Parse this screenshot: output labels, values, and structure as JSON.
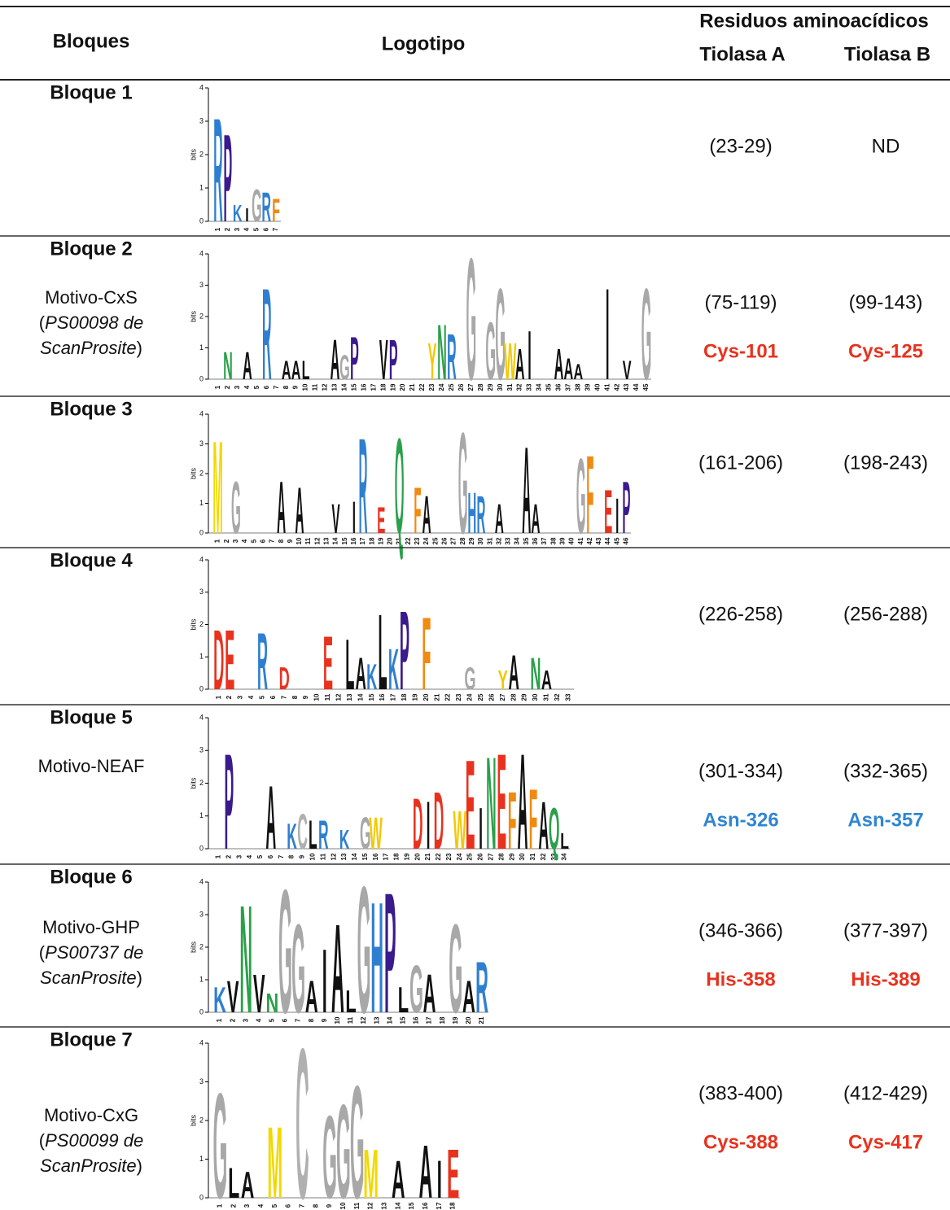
{
  "header": {
    "col_blocks": "Bloques",
    "col_logo": "Logotipo",
    "col_residues": "Residuos aminoacídicos",
    "col_a": "Tiolasa A",
    "col_b": "Tiolasa B"
  },
  "rows": [
    {
      "block": "Bloque 1",
      "logo": {
        "axis_label": "bits",
        "yticks": [
          0,
          1,
          2,
          3,
          4
        ],
        "positions": [
          1,
          2,
          3,
          4,
          5,
          6,
          7
        ],
        "letters": [
          [
            1,
            "R",
            3.2
          ],
          [
            2,
            "P",
            2.7
          ],
          [
            3,
            "K",
            0.5
          ],
          [
            4,
            "I",
            0.4
          ],
          [
            5,
            "G",
            1.0
          ],
          [
            6,
            "R",
            0.9
          ],
          [
            7,
            "F",
            0.7
          ]
        ]
      },
      "a": {
        "range": "(23-29)"
      },
      "b": {
        "range": "ND"
      }
    },
    {
      "block": "Bloque 2",
      "motif": {
        "name": "Motivo-CxS",
        "ref": [
          "(",
          "PS00098 de",
          "ScanProsite",
          ")"
        ]
      },
      "logo": {
        "axis_label": "bits",
        "yticks": [
          0,
          1,
          2,
          3,
          4
        ],
        "positions": [
          1,
          2,
          3,
          4,
          5,
          6,
          7,
          8,
          9,
          10,
          11,
          12,
          13,
          14,
          15,
          16,
          17,
          18,
          19,
          20,
          21,
          22,
          23,
          24,
          25,
          26,
          27,
          28,
          29,
          30,
          31,
          32,
          33,
          34,
          35,
          36,
          37,
          38,
          39,
          40,
          41,
          42,
          43,
          44,
          45
        ],
        "letters": [
          [
            2,
            "N",
            0.9
          ],
          [
            4,
            "A",
            0.9
          ],
          [
            6,
            "R",
            3.0
          ],
          [
            8,
            "A",
            0.6
          ],
          [
            9,
            "A",
            0.6
          ],
          [
            10,
            "L",
            0.6
          ],
          [
            13,
            "A",
            1.3
          ],
          [
            14,
            "G",
            0.8
          ],
          [
            15,
            "P",
            1.4
          ],
          [
            18,
            "V",
            1.3
          ],
          [
            19,
            "P",
            1.3
          ],
          [
            23,
            "Y",
            1.2
          ],
          [
            24,
            "N",
            1.8
          ],
          [
            25,
            "R",
            1.5
          ],
          [
            27,
            "G",
            4.0
          ],
          [
            29,
            "G",
            1.9
          ],
          [
            30,
            "G",
            3.0
          ],
          [
            31,
            "W",
            1.2
          ],
          [
            32,
            "A",
            1.0
          ],
          [
            33,
            "I",
            1.6
          ],
          [
            36,
            "A",
            1.0
          ],
          [
            37,
            "A",
            0.7
          ],
          [
            38,
            "A",
            0.5
          ],
          [
            41,
            "I",
            3.0
          ],
          [
            43,
            "V",
            0.6
          ],
          [
            45,
            "G",
            3.0
          ]
        ]
      },
      "a": {
        "range": "(75-119)",
        "residue": "Cys-101",
        "color": "#e8321e"
      },
      "b": {
        "range": "(99-143)",
        "residue": "Cys-125",
        "color": "#e8321e"
      }
    },
    {
      "block": "Bloque 3",
      "logo": {
        "axis_label": "bits",
        "yticks": [
          0,
          1,
          2,
          3,
          4
        ],
        "positions": [
          1,
          2,
          3,
          4,
          5,
          6,
          7,
          8,
          9,
          10,
          11,
          12,
          13,
          14,
          15,
          16,
          17,
          18,
          19,
          20,
          21,
          22,
          23,
          24,
          25,
          26,
          27,
          28,
          29,
          30,
          31,
          32,
          33,
          34,
          35,
          36,
          37,
          38,
          39,
          40,
          41,
          42,
          43,
          44,
          45,
          46
        ],
        "letters": [
          [
            1,
            "M",
            3.2
          ],
          [
            3,
            "G",
            1.8
          ],
          [
            8,
            "A",
            1.8
          ],
          [
            10,
            "A",
            1.6
          ],
          [
            14,
            "V",
            1.0
          ],
          [
            16,
            "I",
            1.1
          ],
          [
            17,
            "R",
            3.3
          ],
          [
            19,
            "E",
            0.9
          ],
          [
            21,
            "Q",
            3.3
          ],
          [
            23,
            "F",
            1.6
          ],
          [
            24,
            "A",
            1.3
          ],
          [
            28,
            "G",
            3.5
          ],
          [
            29,
            "H",
            1.4
          ],
          [
            30,
            "R",
            1.3
          ],
          [
            32,
            "A",
            1.0
          ],
          [
            35,
            "A",
            3.0
          ],
          [
            36,
            "A",
            1.0
          ],
          [
            41,
            "G",
            2.6
          ],
          [
            42,
            "F",
            2.7
          ],
          [
            44,
            "E",
            1.5
          ],
          [
            45,
            "I",
            1.2
          ],
          [
            46,
            "P",
            1.8
          ]
        ]
      },
      "a": {
        "range": "(161-206)"
      },
      "b": {
        "range": "(198-243)"
      }
    },
    {
      "block": "Bloque 4",
      "logo": {
        "axis_label": "bits",
        "yticks": [
          0,
          1,
          2,
          3,
          4
        ],
        "positions": [
          1,
          2,
          3,
          4,
          5,
          6,
          7,
          8,
          9,
          10,
          11,
          12,
          13,
          14,
          15,
          16,
          17,
          18,
          19,
          20,
          21,
          22,
          23,
          24,
          25,
          26,
          27,
          28,
          29,
          30,
          31,
          32,
          33
        ],
        "letters": [
          [
            1,
            "D",
            1.9
          ],
          [
            2,
            "E",
            1.9
          ],
          [
            5,
            "R",
            1.8
          ],
          [
            7,
            "D",
            0.7
          ],
          [
            11,
            "E",
            1.7
          ],
          [
            13,
            "L",
            1.6
          ],
          [
            14,
            "A",
            1.0
          ],
          [
            15,
            "K",
            0.8
          ],
          [
            16,
            "L",
            2.4
          ],
          [
            17,
            "K",
            1.3
          ],
          [
            18,
            "P",
            2.5
          ],
          [
            20,
            "F",
            2.3
          ],
          [
            24,
            "G",
            0.7
          ],
          [
            27,
            "Y",
            0.6
          ],
          [
            28,
            "A",
            1.1
          ],
          [
            30,
            "N",
            1.0
          ],
          [
            31,
            "A",
            0.6
          ]
        ]
      },
      "a": {
        "range": "(226-258)"
      },
      "b": {
        "range": "(256-288)"
      }
    },
    {
      "block": "Bloque 5",
      "motif": {
        "name": "Motivo-NEAF"
      },
      "logo": {
        "axis_label": "bits",
        "yticks": [
          0,
          1,
          2,
          3,
          4
        ],
        "positions": [
          1,
          2,
          3,
          4,
          5,
          6,
          7,
          8,
          9,
          10,
          11,
          12,
          13,
          14,
          15,
          16,
          17,
          18,
          19,
          20,
          21,
          22,
          23,
          24,
          25,
          26,
          27,
          28,
          29,
          30,
          31,
          32,
          33,
          34
        ],
        "letters": [
          [
            2,
            "P",
            3.0
          ],
          [
            6,
            "A",
            2.0
          ],
          [
            8,
            "K",
            0.8
          ],
          [
            9,
            "C",
            1.1
          ],
          [
            10,
            "L",
            0.9
          ],
          [
            11,
            "R",
            0.9
          ],
          [
            13,
            "K",
            0.6
          ],
          [
            15,
            "G",
            1.0
          ],
          [
            16,
            "W",
            1.0
          ],
          [
            20,
            "D",
            1.6
          ],
          [
            21,
            "I",
            1.5
          ],
          [
            22,
            "D",
            1.8
          ],
          [
            24,
            "W",
            1.2
          ],
          [
            25,
            "E",
            2.8
          ],
          [
            26,
            "I",
            1.3
          ],
          [
            27,
            "N",
            2.9
          ],
          [
            28,
            "E",
            3.0
          ],
          [
            29,
            "F",
            1.8
          ],
          [
            30,
            "A",
            3.0
          ],
          [
            31,
            "F",
            1.9
          ],
          [
            32,
            "A",
            1.5
          ],
          [
            33,
            "Q",
            1.3
          ],
          [
            34,
            "L",
            0.5
          ]
        ]
      },
      "a": {
        "range": "(301-334)",
        "residue": "Asn-326",
        "color": "#2f86d0"
      },
      "b": {
        "range": "(332-365)",
        "residue": "Asn-357",
        "color": "#2f86d0"
      }
    },
    {
      "block": "Bloque 6",
      "motif": {
        "name": "Motivo-GHP",
        "ref": [
          "(",
          "PS00737 de",
          "ScanProsite",
          ")"
        ]
      },
      "logo": {
        "axis_label": "bits",
        "yticks": [
          0,
          1,
          2,
          3,
          4
        ],
        "positions": [
          1,
          2,
          3,
          4,
          5,
          6,
          7,
          8,
          9,
          10,
          11,
          12,
          13,
          14,
          15,
          16,
          17,
          18,
          19,
          20,
          21
        ],
        "letters": [
          [
            1,
            "K",
            0.8
          ],
          [
            2,
            "V",
            1.0
          ],
          [
            3,
            "N",
            3.4
          ],
          [
            4,
            "V",
            1.2
          ],
          [
            5,
            "N",
            0.6
          ],
          [
            6,
            "G",
            3.9
          ],
          [
            7,
            "G",
            2.8
          ],
          [
            8,
            "A",
            1.0
          ],
          [
            9,
            "I",
            2.0
          ],
          [
            10,
            "A",
            2.8
          ],
          [
            11,
            "L",
            0.7
          ],
          [
            12,
            "G",
            4.0
          ],
          [
            13,
            "H",
            3.5
          ],
          [
            14,
            "P",
            3.8
          ],
          [
            15,
            "L",
            0.8
          ],
          [
            16,
            "G",
            1.5
          ],
          [
            17,
            "A",
            1.2
          ],
          [
            19,
            "G",
            2.8
          ],
          [
            20,
            "A",
            1.0
          ],
          [
            21,
            "R",
            1.6
          ]
        ]
      },
      "a": {
        "range": "(346-366)",
        "residue": "His-358",
        "color": "#e8321e"
      },
      "b": {
        "range": "(377-397)",
        "residue": "His-389",
        "color": "#e8321e"
      }
    },
    {
      "block": "Bloque 7",
      "motif": {
        "name": "Motivo-CxG",
        "ref": [
          "(",
          "PS00099 de",
          "ScanProsite",
          ")"
        ]
      },
      "logo": {
        "axis_label": "bits",
        "yticks": [
          0,
          1,
          2,
          3,
          4
        ],
        "positions": [
          1,
          2,
          3,
          4,
          5,
          6,
          7,
          8,
          9,
          10,
          11,
          12,
          13,
          14,
          15,
          16,
          17,
          18
        ],
        "letters": [
          [
            1,
            "G",
            2.8
          ],
          [
            2,
            "L",
            0.8
          ],
          [
            3,
            "A",
            0.7
          ],
          [
            5,
            "M",
            1.9
          ],
          [
            7,
            "C",
            4.0
          ],
          [
            9,
            "G",
            2.2
          ],
          [
            10,
            "G",
            2.5
          ],
          [
            11,
            "G",
            3.0
          ],
          [
            12,
            "M",
            1.3
          ],
          [
            14,
            "A",
            1.0
          ],
          [
            16,
            "A",
            1.4
          ],
          [
            17,
            "I",
            1.0
          ],
          [
            18,
            "E",
            1.3
          ]
        ]
      },
      "a": {
        "range": "(383-400)",
        "residue": "Cys-388",
        "color": "#e8321e"
      },
      "b": {
        "range": "(412-429)",
        "residue": "Cys-417",
        "color": "#e8321e"
      }
    }
  ]
}
